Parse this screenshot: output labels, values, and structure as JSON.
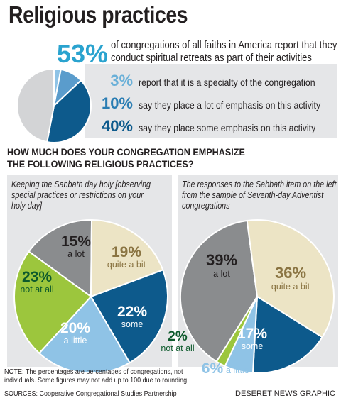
{
  "title": "Religious practices",
  "headline": {
    "value": "53%",
    "text_line1": "of congregations of all faiths in America report that they",
    "text_line2": "conduct spiritual retreats as part of their activities"
  },
  "retreat_stats": [
    {
      "pct": "3%",
      "text": "report that it is a specialty of the congregation",
      "color": "#6ab0d8"
    },
    {
      "pct": "10%",
      "text": "say they place a lot of emphasis on this activity",
      "color": "#2a7db3"
    },
    {
      "pct": "40%",
      "text": "say they place some emphasis on this activity",
      "color": "#0d5a8c"
    }
  ],
  "question": {
    "line1": "HOW MUCH DOES YOUR CONGREGATION EMPHASIZE",
    "line2": "THE FOLLOWING RELIGIOUS PRACTICES?"
  },
  "left_panel": {
    "caption_line1": "Keeping the Sabbath day holy [observing",
    "caption_line2": "special practices or restrictions on your",
    "caption_line3": "holy day]"
  },
  "right_panel": {
    "caption_line1": "The responses to the Sabbath item on the left",
    "caption_line2": "from the sample of Seventh-day Adventist",
    "caption_line3": "congregations"
  },
  "note_line1": "NOTE: The percentages are percentages of congregations, not",
  "note_line2": "individuals. Some figures may not add up to 100 due to rounding.",
  "sources": "SOURCES: Cooperative Congregational Studies Partnership",
  "credit": "DESERET NEWS GRAPHIC",
  "chart_data": [
    {
      "type": "pie",
      "slices": [
        {
          "label": "",
          "value": 3,
          "color": "#8fc3e6"
        },
        {
          "label": "",
          "value": 10,
          "color": "#5a9ccc"
        },
        {
          "label": "",
          "value": 40,
          "color": "#0d5a8c"
        },
        {
          "label": "",
          "value": 47,
          "color": "#d3d4d6"
        }
      ]
    },
    {
      "type": "pie",
      "title": "Keeping the Sabbath day holy [observing special practices or restrictions on your holy day]",
      "slices": [
        {
          "label": "a lot",
          "pct_label": "15%",
          "value": 15,
          "color": "#8a8c8e"
        },
        {
          "label": "quite a bit",
          "pct_label": "19%",
          "value": 19,
          "color": "#ece4c5"
        },
        {
          "label": "some",
          "pct_label": "22%",
          "value": 22,
          "color": "#0d5a8c"
        },
        {
          "label": "a little",
          "pct_label": "20%",
          "value": 20,
          "color": "#8fc3e6"
        },
        {
          "label": "not at all",
          "pct_label": "23%",
          "value": 23,
          "color": "#9cc63d"
        }
      ]
    },
    {
      "type": "pie",
      "title": "The responses to the Sabbath item on the left from the sample of Seventh-day Adventist congregations",
      "slices": [
        {
          "label": "a lot",
          "pct_label": "39%",
          "value": 39,
          "color": "#8a8c8e"
        },
        {
          "label": "quite a bit",
          "pct_label": "36%",
          "value": 36,
          "color": "#ece4c5"
        },
        {
          "label": "some",
          "pct_label": "17%",
          "value": 17,
          "color": "#0d5a8c"
        },
        {
          "label": "a little",
          "pct_label": "6%",
          "value": 6,
          "color": "#8fc3e6"
        },
        {
          "label": "not at all",
          "pct_label": "2%",
          "value": 2,
          "color": "#9cc63d"
        }
      ]
    }
  ]
}
